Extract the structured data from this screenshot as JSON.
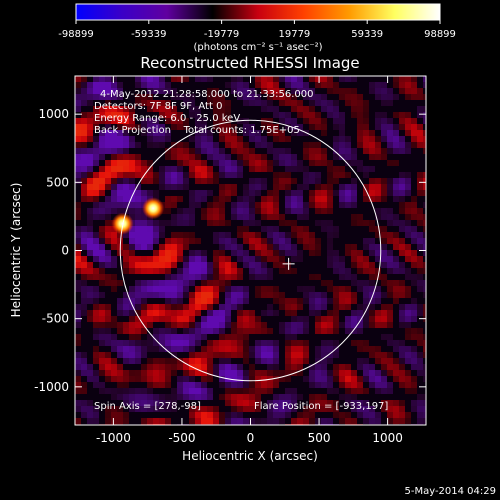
{
  "chart_data": {
    "type": "heatmap",
    "title": "Reconstructed RHESSI Image",
    "xlabel": "Heliocentric X (arcsec)",
    "ylabel": "Heliocentric Y (arcsec)",
    "xlim": [
      -1280,
      1280
    ],
    "ylim": [
      -1280,
      1280
    ],
    "x_ticks": [
      -1000,
      -500,
      0,
      500,
      1000
    ],
    "y_ticks": [
      -1000,
      -500,
      0,
      500,
      1000
    ],
    "x_tick_labels": [
      "-1000",
      "-500",
      "0",
      "500",
      "1000"
    ],
    "y_tick_labels": [
      "-1000",
      "-500",
      "0",
      "500",
      "1000"
    ],
    "colorbar": {
      "ticks": [
        -98899,
        -59339,
        -19779,
        19779,
        59339,
        98899
      ],
      "tick_labels": [
        "-98899",
        "-59339",
        "-19779",
        "19779",
        "59339",
        "98899"
      ],
      "units": "(photons cm⁻² s⁻¹ asec⁻²)",
      "colors": [
        "#0000ff",
        "#3a00c8",
        "#6000a0",
        "#000000",
        "#c80010",
        "#ff4000",
        "#ff9a00",
        "#ffff60",
        "#ffffff"
      ]
    },
    "info_lines": [
      "4-May-2012 21:28:58.000 to 21:33:56.000",
      "Detectors: 7F 8F 9F, Att 0",
      "Energy Range: 6.0 - 25.0 keV",
      "Back Projection    Total counts: 1.75E+05"
    ],
    "spin_axis": "Spin Axis = [278,-98]",
    "flare_position": "Flare Position = [-933,197]",
    "solar_limb_radius": 950,
    "sun_center": [
      0,
      0
    ],
    "spin_axis_marker": [
      278,
      -98
    ],
    "sources": [
      {
        "x": -933,
        "y": 197,
        "peak": 98899
      },
      {
        "x": -710,
        "y": 310,
        "peak": 98899
      }
    ]
  },
  "footer": {
    "timestamp": "5-May-2014 04:29"
  }
}
